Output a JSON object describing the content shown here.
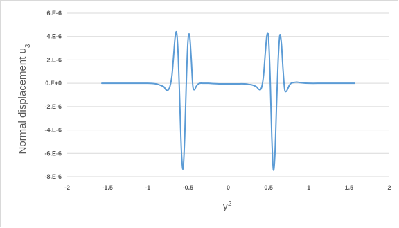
{
  "chart_data": {
    "type": "line",
    "title": "",
    "xlabel": "y",
    "xlabel_superscript": "2",
    "ylabel": "Normal displacement u",
    "ylabel_subscript": "3",
    "xlim": [
      -2,
      2
    ],
    "ylim": [
      -8e-06,
      6e-06
    ],
    "xticks": [
      "-2",
      "-1.5",
      "-1",
      "-0.5",
      "0",
      "0.5",
      "1",
      "1.5",
      "2"
    ],
    "yticks": [
      "6.E-6",
      "4.E-6",
      "2.E-6",
      "0.E+0",
      "-2.E-6",
      "-4.E-6",
      "-6.E-6",
      "-8.E-6"
    ],
    "grid": "horizontal",
    "line_color": "#5b9bd5",
    "series": [
      {
        "x": [
          -1.57,
          -1.2,
          -1.0,
          -0.9,
          -0.85,
          -0.8,
          -0.775,
          -0.75,
          -0.725,
          -0.7,
          -0.68,
          -0.66,
          -0.64,
          -0.62,
          -0.6,
          -0.58,
          -0.56,
          -0.54,
          -0.52,
          -0.5,
          -0.48,
          -0.46,
          -0.44,
          -0.42,
          -0.4,
          -0.38,
          -0.35,
          -0.3,
          -0.25,
          -0.2,
          -0.1,
          0,
          0.1,
          0.2,
          0.25,
          0.3,
          0.35,
          0.375,
          0.4,
          0.42,
          0.44,
          0.46,
          0.48,
          0.5,
          0.52,
          0.54,
          0.56,
          0.58,
          0.6,
          0.62,
          0.64,
          0.66,
          0.68,
          0.7,
          0.72,
          0.74,
          0.76,
          0.78,
          0.8,
          0.85,
          0.9,
          1.0,
          1.2,
          1.57
        ],
        "y": [
          0,
          0,
          0,
          -5e-08,
          -1.5e-07,
          -3e-07,
          -5.5e-07,
          -6e-07,
          -3e-07,
          6e-07,
          2.2e-06,
          3.9e-06,
          4.3e-06,
          2.2e-06,
          -2e-06,
          -6e-06,
          -7.3e-06,
          -4.5e-06,
          2e-07,
          3.6e-06,
          4.1e-06,
          2.2e-06,
          -2e-07,
          -5.5e-07,
          -3e-07,
          -1e-07,
          0,
          0,
          0,
          -2e-08,
          -5e-08,
          -5e-08,
          -5e-08,
          -5e-08,
          -1e-07,
          -1.5e-07,
          -3e-07,
          -5e-07,
          -5.5e-07,
          -2e-07,
          8e-07,
          2.6e-06,
          4.1e-06,
          3.9e-06,
          5e-07,
          -4.5e-06,
          -7.4e-06,
          -6e-06,
          -1.8e-06,
          2e-06,
          4.1e-06,
          3.4e-06,
          1.2e-06,
          -5e-07,
          -7e-07,
          -4.5e-07,
          -1.5e-07,
          0,
          5e-08,
          1e-07,
          5e-08,
          0,
          0,
          0
        ]
      }
    ]
  }
}
